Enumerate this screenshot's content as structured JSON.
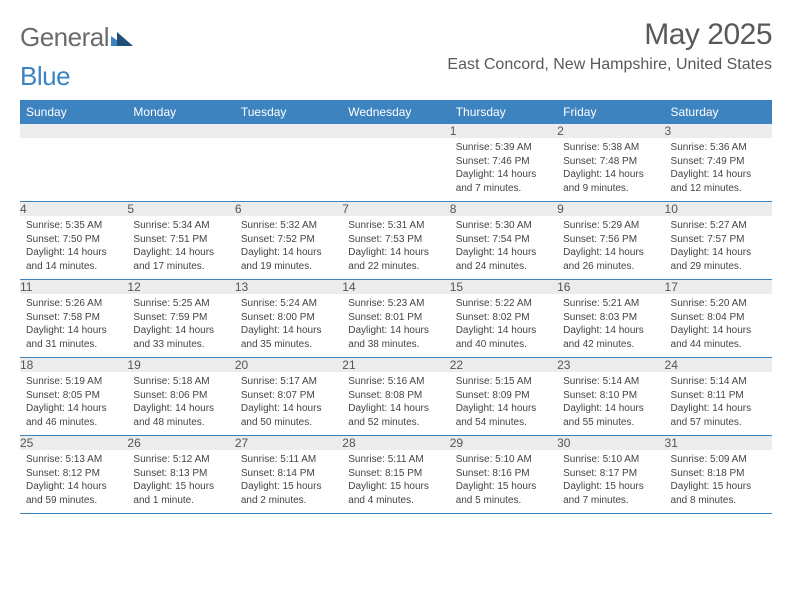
{
  "logo": {
    "general": "General",
    "blue": "Blue"
  },
  "title": "May 2025",
  "location": "East Concord, New Hampshire, United States",
  "colors": {
    "header_bg": "#3d83bf",
    "header_text": "#ffffff",
    "daynum_bg": "#ececec",
    "daynum_text": "#555555",
    "body_text": "#444444",
    "title_text": "#595959",
    "row_border": "#3d83bf",
    "logo_gray": "#6b6b6b",
    "logo_blue": "#3d83bf",
    "background": "#ffffff"
  },
  "typography": {
    "title_fontsize": 30,
    "location_fontsize": 16,
    "header_fontsize": 12,
    "daynum_fontsize": 12,
    "cell_fontsize": 10,
    "logo_fontsize": 26
  },
  "dayHeaders": [
    "Sunday",
    "Monday",
    "Tuesday",
    "Wednesday",
    "Thursday",
    "Friday",
    "Saturday"
  ],
  "weeks": [
    [
      null,
      null,
      null,
      null,
      {
        "n": "1",
        "sunrise": "5:39 AM",
        "sunset": "7:46 PM",
        "daylight": "14 hours and 7 minutes."
      },
      {
        "n": "2",
        "sunrise": "5:38 AM",
        "sunset": "7:48 PM",
        "daylight": "14 hours and 9 minutes."
      },
      {
        "n": "3",
        "sunrise": "5:36 AM",
        "sunset": "7:49 PM",
        "daylight": "14 hours and 12 minutes."
      }
    ],
    [
      {
        "n": "4",
        "sunrise": "5:35 AM",
        "sunset": "7:50 PM",
        "daylight": "14 hours and 14 minutes."
      },
      {
        "n": "5",
        "sunrise": "5:34 AM",
        "sunset": "7:51 PM",
        "daylight": "14 hours and 17 minutes."
      },
      {
        "n": "6",
        "sunrise": "5:32 AM",
        "sunset": "7:52 PM",
        "daylight": "14 hours and 19 minutes."
      },
      {
        "n": "7",
        "sunrise": "5:31 AM",
        "sunset": "7:53 PM",
        "daylight": "14 hours and 22 minutes."
      },
      {
        "n": "8",
        "sunrise": "5:30 AM",
        "sunset": "7:54 PM",
        "daylight": "14 hours and 24 minutes."
      },
      {
        "n": "9",
        "sunrise": "5:29 AM",
        "sunset": "7:56 PM",
        "daylight": "14 hours and 26 minutes."
      },
      {
        "n": "10",
        "sunrise": "5:27 AM",
        "sunset": "7:57 PM",
        "daylight": "14 hours and 29 minutes."
      }
    ],
    [
      {
        "n": "11",
        "sunrise": "5:26 AM",
        "sunset": "7:58 PM",
        "daylight": "14 hours and 31 minutes."
      },
      {
        "n": "12",
        "sunrise": "5:25 AM",
        "sunset": "7:59 PM",
        "daylight": "14 hours and 33 minutes."
      },
      {
        "n": "13",
        "sunrise": "5:24 AM",
        "sunset": "8:00 PM",
        "daylight": "14 hours and 35 minutes."
      },
      {
        "n": "14",
        "sunrise": "5:23 AM",
        "sunset": "8:01 PM",
        "daylight": "14 hours and 38 minutes."
      },
      {
        "n": "15",
        "sunrise": "5:22 AM",
        "sunset": "8:02 PM",
        "daylight": "14 hours and 40 minutes."
      },
      {
        "n": "16",
        "sunrise": "5:21 AM",
        "sunset": "8:03 PM",
        "daylight": "14 hours and 42 minutes."
      },
      {
        "n": "17",
        "sunrise": "5:20 AM",
        "sunset": "8:04 PM",
        "daylight": "14 hours and 44 minutes."
      }
    ],
    [
      {
        "n": "18",
        "sunrise": "5:19 AM",
        "sunset": "8:05 PM",
        "daylight": "14 hours and 46 minutes."
      },
      {
        "n": "19",
        "sunrise": "5:18 AM",
        "sunset": "8:06 PM",
        "daylight": "14 hours and 48 minutes."
      },
      {
        "n": "20",
        "sunrise": "5:17 AM",
        "sunset": "8:07 PM",
        "daylight": "14 hours and 50 minutes."
      },
      {
        "n": "21",
        "sunrise": "5:16 AM",
        "sunset": "8:08 PM",
        "daylight": "14 hours and 52 minutes."
      },
      {
        "n": "22",
        "sunrise": "5:15 AM",
        "sunset": "8:09 PM",
        "daylight": "14 hours and 54 minutes."
      },
      {
        "n": "23",
        "sunrise": "5:14 AM",
        "sunset": "8:10 PM",
        "daylight": "14 hours and 55 minutes."
      },
      {
        "n": "24",
        "sunrise": "5:14 AM",
        "sunset": "8:11 PM",
        "daylight": "14 hours and 57 minutes."
      }
    ],
    [
      {
        "n": "25",
        "sunrise": "5:13 AM",
        "sunset": "8:12 PM",
        "daylight": "14 hours and 59 minutes."
      },
      {
        "n": "26",
        "sunrise": "5:12 AM",
        "sunset": "8:13 PM",
        "daylight": "15 hours and 1 minute."
      },
      {
        "n": "27",
        "sunrise": "5:11 AM",
        "sunset": "8:14 PM",
        "daylight": "15 hours and 2 minutes."
      },
      {
        "n": "28",
        "sunrise": "5:11 AM",
        "sunset": "8:15 PM",
        "daylight": "15 hours and 4 minutes."
      },
      {
        "n": "29",
        "sunrise": "5:10 AM",
        "sunset": "8:16 PM",
        "daylight": "15 hours and 5 minutes."
      },
      {
        "n": "30",
        "sunrise": "5:10 AM",
        "sunset": "8:17 PM",
        "daylight": "15 hours and 7 minutes."
      },
      {
        "n": "31",
        "sunrise": "5:09 AM",
        "sunset": "8:18 PM",
        "daylight": "15 hours and 8 minutes."
      }
    ]
  ],
  "labels": {
    "sunrise_prefix": "Sunrise: ",
    "sunset_prefix": "Sunset: ",
    "daylight_prefix": "Daylight: "
  }
}
